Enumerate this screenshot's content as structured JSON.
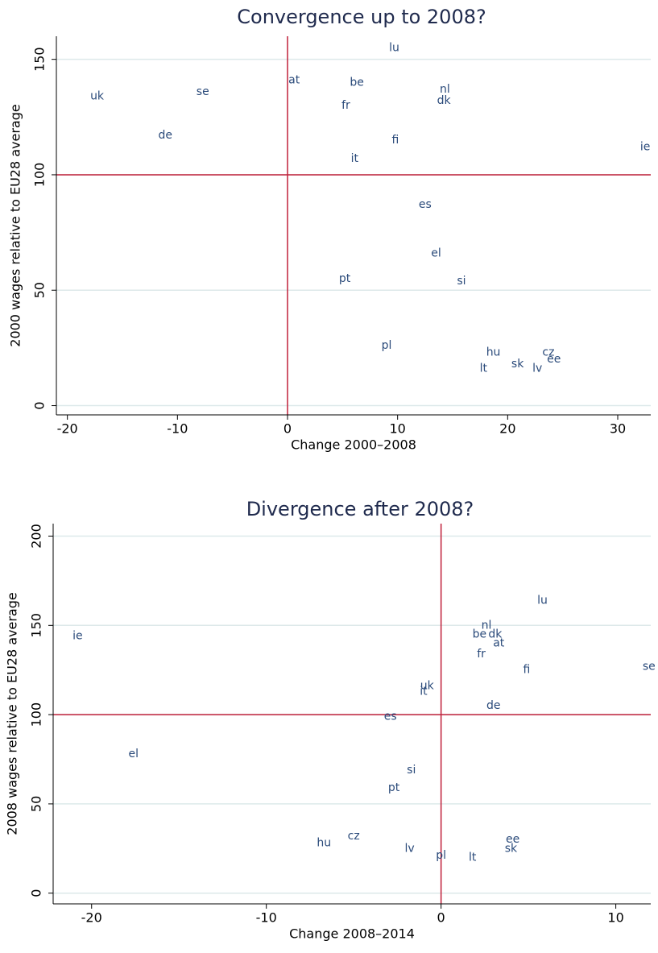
{
  "chart_data": [
    {
      "type": "scatter",
      "title": "Convergence up to 2008?",
      "x_label": "Change 2000–2008",
      "y_label": "2000 wages relative to EU28 average",
      "labels": [
        "uk",
        "se",
        "at",
        "be",
        "lu",
        "nl",
        "dk",
        "fr",
        "de",
        "fi",
        "it",
        "ie",
        "es",
        "el",
        "pt",
        "si",
        "pl",
        "hu",
        "cz",
        "ee",
        "sk",
        "lv",
        "lt"
      ],
      "x": [
        -17.3,
        -7.7,
        0.6,
        6.3,
        9.7,
        14.3,
        14.2,
        5.3,
        -11.1,
        9.8,
        6.1,
        32.5,
        12.5,
        13.5,
        5.2,
        15.8,
        9.0,
        18.7,
        23.7,
        24.2,
        20.9,
        22.7,
        17.8
      ],
      "y": [
        134,
        136,
        141,
        140,
        155,
        137,
        132,
        130,
        117,
        115,
        107,
        112,
        87,
        66,
        55,
        54,
        26,
        23,
        23,
        20,
        18,
        16,
        16
      ],
      "color": "#2a4a7a",
      "xlim": [
        -21,
        33
      ],
      "ylim": [
        -4,
        160
      ],
      "xticks": [
        -20,
        -10,
        0,
        10,
        20,
        30
      ],
      "yticks": [
        0,
        50,
        100,
        150
      ],
      "grid": true,
      "grid_color": "#dde9ea",
      "vline": 0,
      "hline": 100,
      "line_color": "#c0203a"
    },
    {
      "type": "scatter",
      "title": "Divergence after 2008?",
      "x_label": "Change 2008–2014",
      "y_label": "2008 wages relative to EU28 average",
      "labels": [
        "ie",
        "el",
        "lu",
        "nl",
        "be",
        "dk",
        "at",
        "fr",
        "fi",
        "se",
        "uk",
        "it",
        "de",
        "es",
        "si",
        "pt",
        "cz",
        "hu",
        "lv",
        "pl",
        "lt",
        "ee",
        "sk"
      ],
      "x": [
        -20.8,
        -17.6,
        5.8,
        2.6,
        2.2,
        3.1,
        3.3,
        2.3,
        4.9,
        11.9,
        -0.8,
        -1.0,
        3.0,
        -2.9,
        -1.7,
        -2.7,
        -5.0,
        -6.7,
        -1.8,
        0.0,
        1.8,
        4.1,
        4.0
      ],
      "y": [
        144,
        78,
        164,
        150,
        145,
        145,
        140,
        134,
        125,
        127,
        116,
        113,
        105,
        99,
        69,
        59,
        32,
        28,
        25,
        21,
        20,
        30,
        25
      ],
      "color": "#2a4a7a",
      "xlim": [
        -22.2,
        12
      ],
      "ylim": [
        -6,
        207
      ],
      "xticks": [
        -20,
        -10,
        0,
        10
      ],
      "yticks": [
        0,
        50,
        100,
        150,
        200
      ],
      "grid": true,
      "grid_color": "#dde9ea",
      "vline": 0,
      "hline": 100,
      "line_color": "#c0203a"
    }
  ]
}
